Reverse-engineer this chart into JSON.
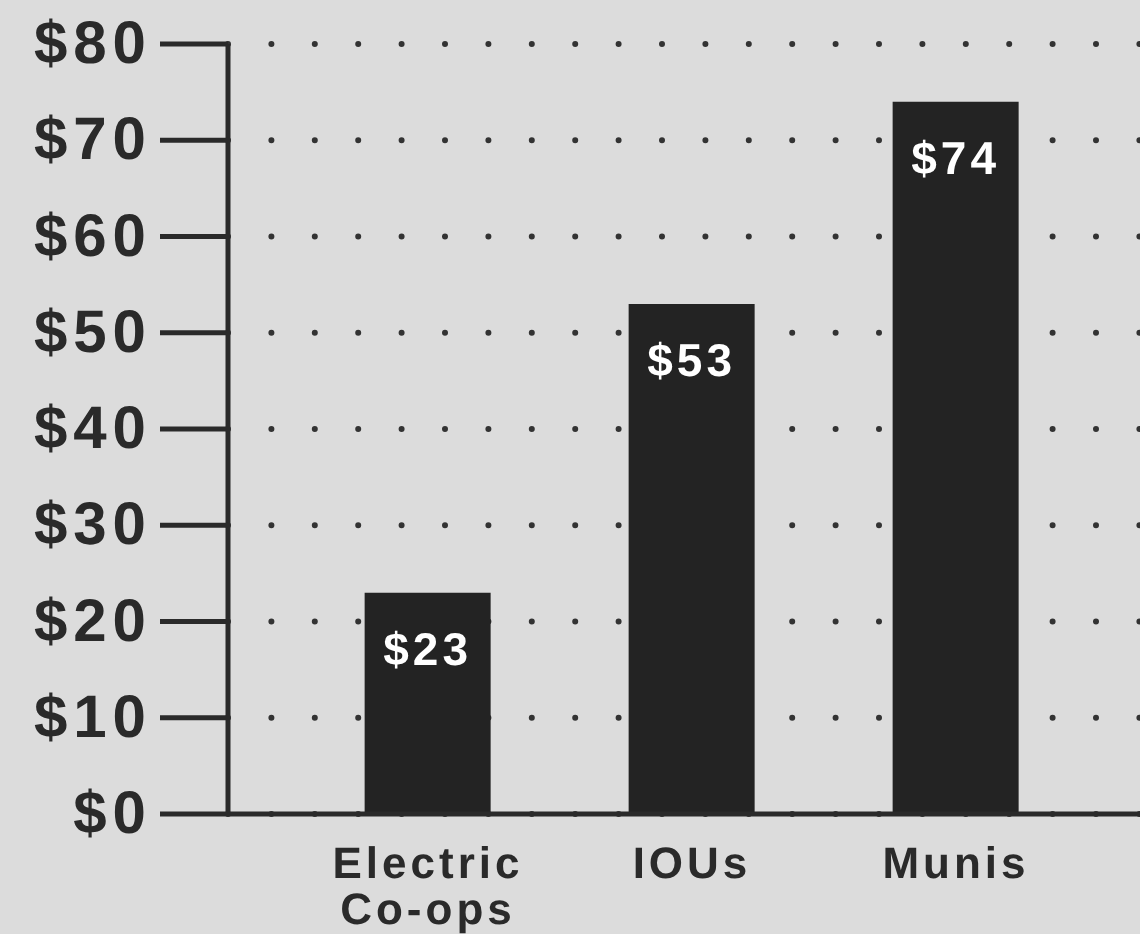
{
  "chart_data": {
    "type": "bar",
    "categories": [
      "Electric Co-ops",
      "IOUs",
      "Munis"
    ],
    "values": [
      23,
      53,
      74
    ],
    "color": "#232323",
    "value_labels": [
      "$23",
      "$53",
      "$74"
    ],
    "ylim": [
      0,
      80
    ],
    "yticks": [
      {
        "value": 0,
        "label": "$0"
      },
      {
        "value": 10,
        "label": "$10"
      },
      {
        "value": 20,
        "label": "$20"
      },
      {
        "value": 30,
        "label": "$30"
      },
      {
        "value": 40,
        "label": "$40"
      },
      {
        "value": 50,
        "label": "$50"
      },
      {
        "value": 60,
        "label": "$60"
      },
      {
        "value": 70,
        "label": "$70"
      },
      {
        "value": 80,
        "label": "$80"
      }
    ],
    "grid": "y"
  }
}
